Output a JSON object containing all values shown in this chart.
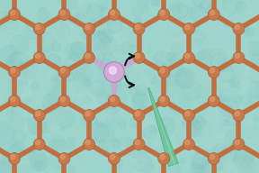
{
  "bg_color": "#9dd4cc",
  "atom_color": "#c8784a",
  "atom_highlight": "#dda070",
  "atom_edge_color": "#8a5030",
  "bond_color": "#c07040",
  "bond_width": 4.0,
  "p_atom_color": "#d4a8d8",
  "p_atom_highlight": "#e8c8ec",
  "p_atom_edge_color": "#a878b0",
  "p_bond_color": "#c8a8cc",
  "beam_color": "#6ec49a",
  "beam_highlight": "#a8ddc0",
  "arrow_color": "#111111",
  "figsize": [
    2.88,
    1.92
  ],
  "dpi": 100,
  "xlim": [
    -0.5,
    8.5
  ],
  "ylim": [
    -0.5,
    5.5
  ]
}
